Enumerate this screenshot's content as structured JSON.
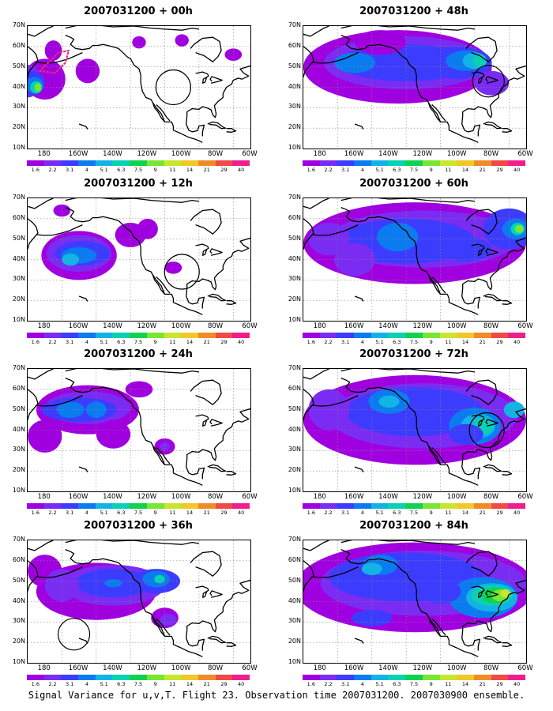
{
  "lat_ticks": [
    "70N",
    "60N",
    "50N",
    "40N",
    "30N",
    "20N",
    "10N"
  ],
  "lon_ticks": [
    "180",
    "160W",
    "140W",
    "120W",
    "100W",
    "80W",
    "60W"
  ],
  "colorbar": {
    "labels": [
      "1.6",
      "2.2",
      "3.1",
      "4",
      "5.1",
      "6.3",
      "7.5",
      "9",
      "11",
      "14",
      "21",
      "29",
      "40"
    ],
    "colors": [
      "#a000e0",
      "#7a2cf2",
      "#3c3cff",
      "#0a7cf0",
      "#12b4e6",
      "#08d2b4",
      "#10d250",
      "#78e632",
      "#c8e630",
      "#f0c828",
      "#f08c28",
      "#f04a46",
      "#f01e8c"
    ]
  },
  "panels": [
    {
      "title": "2007031200 + 00h",
      "col": 0,
      "row": 0
    },
    {
      "title": "2007031200 + 12h",
      "col": 0,
      "row": 1
    },
    {
      "title": "2007031200 + 24h",
      "col": 0,
      "row": 2
    },
    {
      "title": "2007031200 + 36h",
      "col": 0,
      "row": 3
    },
    {
      "title": "2007031200 + 48h",
      "col": 1,
      "row": 0
    },
    {
      "title": "2007031200 + 60h",
      "col": 1,
      "row": 1
    },
    {
      "title": "2007031200 + 72h",
      "col": 1,
      "row": 2
    },
    {
      "title": "2007031200 + 84h",
      "col": 1,
      "row": 3
    }
  ],
  "footer": "Signal Variance for u,v,T. Flight 23. Observation time 2007031200. 2007030900 ensemble."
}
